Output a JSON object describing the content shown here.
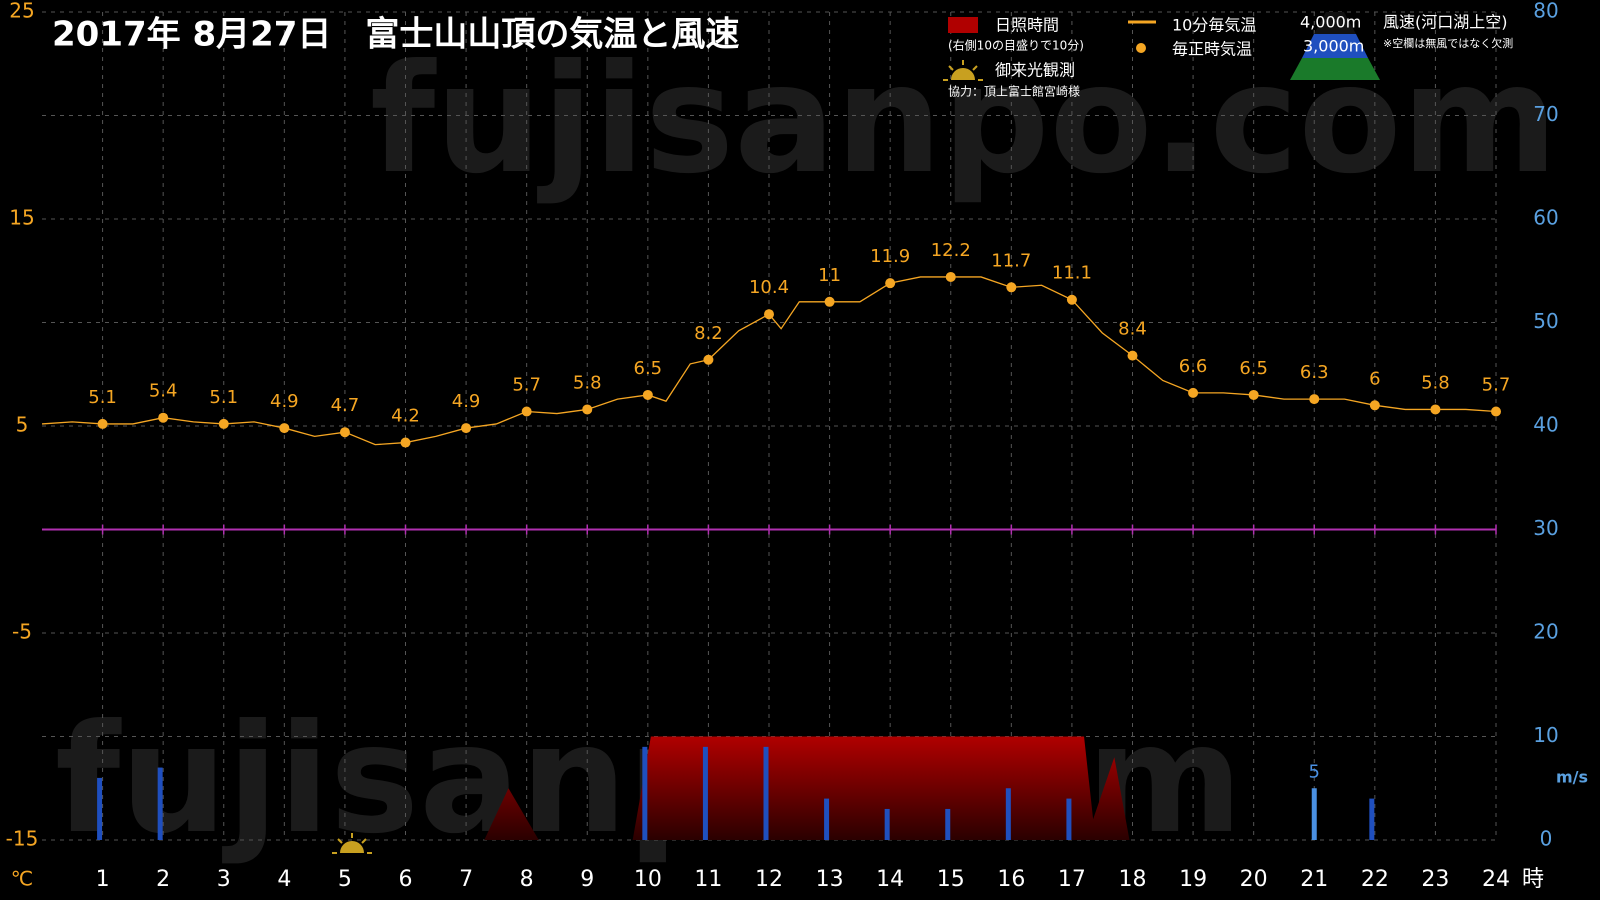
{
  "chart_data": {
    "type": "combo",
    "title": "2017年 8月27日　富士山山頂の気温と風速",
    "ylabel": "℃",
    "y2label": "m/s",
    "xlabel": "時",
    "xlim": [
      0,
      24
    ],
    "xticks": [
      1,
      2,
      3,
      4,
      5,
      6,
      7,
      8,
      9,
      10,
      11,
      12,
      13,
      14,
      15,
      16,
      17,
      18,
      19,
      20,
      21,
      22,
      23,
      24
    ],
    "ylim": [
      -15,
      25
    ],
    "yticks": [
      -15,
      -5,
      5,
      15,
      25
    ],
    "y2lim": [
      0,
      80
    ],
    "y2ticks": [
      0,
      10,
      20,
      30,
      40,
      50,
      60,
      70,
      80
    ],
    "grid": true,
    "reference_line": {
      "value": 0,
      "color": "#b030b0"
    },
    "watermark": "fujisanpo.com",
    "legend_sunrise": "御来光観測",
    "credit": "協力：頂上富士館宮崎様",
    "wind_legend_title": "風速(河口湖上空)",
    "wind_note": "※空欄は無風ではなく欠測",
    "series": [
      {
        "name": "日照時間",
        "sublabel": "(右側10の目盛りで10分)",
        "type": "area",
        "axis": "y2",
        "color": "#b00000",
        "x": [
          7.3,
          7.7,
          8.2,
          9.75,
          10.05,
          17.2,
          17.35,
          17.7,
          17.95
        ],
        "values": [
          0,
          5,
          0,
          0,
          10,
          10,
          2,
          8,
          0
        ]
      },
      {
        "name": "10分毎気温",
        "type": "line",
        "color": "#f5a623",
        "x": [
          0,
          0.5,
          1,
          1.5,
          2,
          2.5,
          3,
          3.5,
          4,
          4.5,
          5,
          5.5,
          6,
          6.5,
          7,
          7.5,
          8,
          8.5,
          9,
          9.5,
          10,
          10.3,
          10.7,
          11,
          11.5,
          12,
          12.2,
          12.5,
          13,
          13.5,
          14,
          14.5,
          15,
          15.5,
          16,
          16.5,
          17,
          17.5,
          18,
          18.5,
          19,
          19.5,
          20,
          20.5,
          21,
          21.5,
          22,
          22.5,
          23,
          23.5,
          24
        ],
        "values": [
          5.1,
          5.2,
          5.1,
          5.1,
          5.4,
          5.2,
          5.1,
          5.2,
          4.9,
          4.5,
          4.7,
          4.1,
          4.2,
          4.5,
          4.9,
          5.1,
          5.7,
          5.6,
          5.8,
          6.3,
          6.5,
          6.2,
          8.0,
          8.2,
          9.6,
          10.4,
          9.7,
          11.0,
          11.0,
          11.0,
          11.9,
          12.2,
          12.2,
          12.2,
          11.7,
          11.8,
          11.1,
          9.5,
          8.4,
          7.2,
          6.6,
          6.6,
          6.5,
          6.3,
          6.3,
          6.3,
          6.0,
          5.8,
          5.8,
          5.8,
          5.7
        ]
      },
      {
        "name": "毎正時気温",
        "type": "scatter",
        "color": "#f5a623",
        "data_labels": true,
        "x": [
          1,
          2,
          3,
          4,
          5,
          6,
          7,
          8,
          9,
          10,
          11,
          12,
          13,
          14,
          15,
          16,
          17,
          18,
          19,
          20,
          21,
          22,
          23,
          24
        ],
        "values": [
          5.1,
          5.4,
          5.1,
          4.9,
          4.7,
          4.2,
          4.9,
          5.7,
          5.8,
          6.5,
          8.2,
          10.4,
          11,
          11.9,
          12.2,
          11.7,
          11.1,
          8.4,
          6.6,
          6.5,
          6.3,
          6,
          5.8,
          5.7
        ]
      },
      {
        "name": "3,000m",
        "type": "bar",
        "axis": "y2",
        "color": "#1f4fbf",
        "x": [
          1,
          2,
          3,
          4,
          5,
          6,
          7,
          8,
          9,
          10,
          11,
          12,
          13,
          14,
          15,
          16,
          17,
          18,
          19,
          20,
          21,
          22,
          23,
          24
        ],
        "values": [
          6,
          7,
          null,
          null,
          null,
          null,
          null,
          null,
          null,
          9,
          9,
          9,
          4,
          3,
          3,
          5,
          4,
          null,
          null,
          null,
          null,
          4,
          null,
          null
        ]
      },
      {
        "name": "4,000m",
        "type": "bar",
        "axis": "y2",
        "color": "#4a90e2",
        "data_labels": true,
        "x": [
          1,
          2,
          3,
          4,
          5,
          6,
          7,
          8,
          9,
          10,
          11,
          12,
          13,
          14,
          15,
          16,
          17,
          18,
          19,
          20,
          21,
          22,
          23,
          24
        ],
        "values": [
          null,
          null,
          null,
          null,
          null,
          null,
          null,
          null,
          null,
          null,
          null,
          null,
          null,
          null,
          null,
          null,
          null,
          null,
          null,
          null,
          5,
          null,
          null,
          null
        ]
      }
    ]
  }
}
